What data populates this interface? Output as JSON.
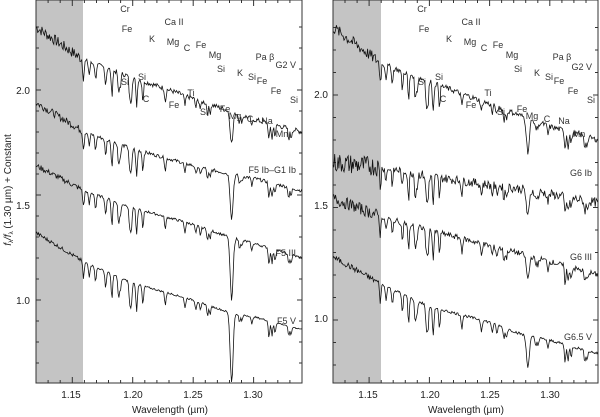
{
  "chart_data": [
    {
      "type": "line",
      "panel": "left",
      "title": "",
      "xlabel": "Wavelength (µm)",
      "ylabel": "f_λ/f_λ (1.30 µm) + Constant",
      "xlim": [
        1.12,
        1.34
      ],
      "ylim": [
        0.6,
        2.35
      ],
      "xticks": [
        "1.15",
        "1.20",
        "1.25",
        "1.30"
      ],
      "yticks": [
        "1.0",
        "1.5",
        "2.0"
      ],
      "shaded_region": [
        1.12,
        1.16
      ],
      "series": [
        {
          "name": "G2 V",
          "label_y": 2.19,
          "x": [
            1.12,
            1.16,
            1.2,
            1.25,
            1.28,
            1.3,
            1.34
          ],
          "values": [
            2.3,
            2.14,
            2.06,
            1.96,
            1.9,
            1.86,
            1.8
          ]
        },
        {
          "name": "F5 Ib–G1 Ib",
          "label_y": 1.74,
          "x": [
            1.12,
            1.16,
            1.2,
            1.25,
            1.28,
            1.3,
            1.34
          ],
          "values": [
            1.94,
            1.8,
            1.72,
            1.64,
            1.6,
            1.58,
            1.52
          ]
        },
        {
          "name": "F5 III",
          "label_y": 1.29,
          "x": [
            1.12,
            1.16,
            1.2,
            1.25,
            1.28,
            1.3,
            1.34
          ],
          "values": [
            1.64,
            1.52,
            1.44,
            1.36,
            1.3,
            1.27,
            1.2
          ]
        },
        {
          "name": "F5 V",
          "label_y": 0.94,
          "x": [
            1.12,
            1.16,
            1.2,
            1.25,
            1.28,
            1.3,
            1.34
          ],
          "values": [
            1.32,
            1.18,
            1.08,
            1.0,
            0.94,
            0.92,
            0.86
          ]
        }
      ],
      "line_ids": [
        {
          "label": "Cr",
          "x": 1.16
        },
        {
          "label": "Fe",
          "x": 1.162
        },
        {
          "label": "K",
          "x": 1.17
        },
        {
          "label": "Mg",
          "x": 1.183
        },
        {
          "label": "Ca II",
          "x": 1.19
        },
        {
          "label": "C",
          "x": 1.189
        },
        {
          "label": "Fe",
          "x": 1.197
        },
        {
          "label": "Mg",
          "x": 1.203
        },
        {
          "label": "Si",
          "x": 1.159
        },
        {
          "label": "Si",
          "x": 1.166
        },
        {
          "label": "C",
          "x": 1.168
        },
        {
          "label": "Fe",
          "x": 1.185
        },
        {
          "label": "Ti",
          "x": 1.192
        },
        {
          "label": "Si",
          "x": 1.203
        },
        {
          "label": "Si",
          "x": 1.228
        },
        {
          "label": "K",
          "x": 1.247
        },
        {
          "label": "Si",
          "x": 1.259
        },
        {
          "label": "Fe",
          "x": 1.264
        },
        {
          "label": "Fe",
          "x": 1.228
        },
        {
          "label": "Mg",
          "x": 1.24
        },
        {
          "label": "C",
          "x": 1.259
        },
        {
          "label": "Na",
          "x": 1.268
        },
        {
          "label": "Pa β",
          "x": 1.282
        },
        {
          "label": "Fe",
          "x": 1.284
        },
        {
          "label": "Mn",
          "x": 1.29
        },
        {
          "label": "Si",
          "x": 1.3
        },
        {
          "label": "Al",
          "x": 1.313
        },
        {
          "label": "Ca",
          "x": 1.31
        },
        {
          "label": "Si",
          "x": 1.317
        },
        {
          "label": "Fe",
          "x": 1.314
        },
        {
          "label": "Fe",
          "x": 1.33
        },
        {
          "label": "Si",
          "x": 1.33
        },
        {
          "label": "Mn",
          "x": 1.33
        }
      ]
    },
    {
      "type": "line",
      "panel": "right",
      "title": "",
      "xlabel": "Wavelength (µm)",
      "ylabel": "",
      "xlim": [
        1.12,
        1.34
      ],
      "ylim": [
        0.6,
        2.35
      ],
      "xticks": [
        "1.15",
        "1.20",
        "1.25",
        "1.30"
      ],
      "yticks": [
        "1.0",
        "1.5",
        "2.0"
      ],
      "shaded_region": [
        1.12,
        1.16
      ],
      "series": [
        {
          "name": "G2 V",
          "label_y": 2.19,
          "x": [
            1.12,
            1.16,
            1.2,
            1.25,
            1.28,
            1.3,
            1.34
          ],
          "values": [
            2.3,
            2.14,
            2.06,
            1.96,
            1.9,
            1.86,
            1.8
          ]
        },
        {
          "name": "G6 Ib",
          "label_y": 1.64,
          "x": [
            1.12,
            1.16,
            1.2,
            1.25,
            1.28,
            1.3,
            1.34
          ],
          "values": [
            1.7,
            1.68,
            1.64,
            1.6,
            1.58,
            1.56,
            1.52
          ]
        },
        {
          "name": "G6 III",
          "label_y": 1.25,
          "x": [
            1.12,
            1.16,
            1.2,
            1.25,
            1.28,
            1.3,
            1.34
          ],
          "values": [
            1.54,
            1.46,
            1.4,
            1.33,
            1.29,
            1.26,
            1.2
          ]
        },
        {
          "name": "G6.5 V",
          "label_y": 0.92,
          "x": [
            1.12,
            1.16,
            1.2,
            1.25,
            1.28,
            1.3,
            1.34
          ],
          "values": [
            1.28,
            1.16,
            1.06,
            0.99,
            0.93,
            0.91,
            0.85
          ]
        }
      ]
    }
  ],
  "labels": {
    "xlabel": "Wavelength (µm)",
    "ylabel": "f_λ/f_λ (1.30 µm) + Constant",
    "ylabel_prefix": "f",
    "ylabel_mid": "/f",
    "ylabel_suffix": " (1.30 µm) + Constant",
    "sub": "λ",
    "xticks": [
      "1.15",
      "1.20",
      "1.25",
      "1.30"
    ],
    "yticks": [
      "1.0",
      "1.5",
      "2.0"
    ],
    "left_series": [
      "G2 V",
      "F5 Ib–G1 Ib",
      "F5 III",
      "F5 V"
    ],
    "right_series": [
      "G2 V",
      "G6 Ib",
      "G6 III",
      "G6.5 V"
    ],
    "ids": {
      "cr": "Cr",
      "fe": "Fe",
      "k": "K",
      "mg": "Mg",
      "ca2": "Ca II",
      "c": "C",
      "si": "Si",
      "ti": "Ti",
      "na": "Na",
      "pab": "Pa  β",
      "mn": "Mn",
      "al": "Al",
      "ca": "Ca"
    }
  },
  "colors": {
    "shade": "#c4c4c4",
    "line": "#111111",
    "axis": "#333333"
  }
}
